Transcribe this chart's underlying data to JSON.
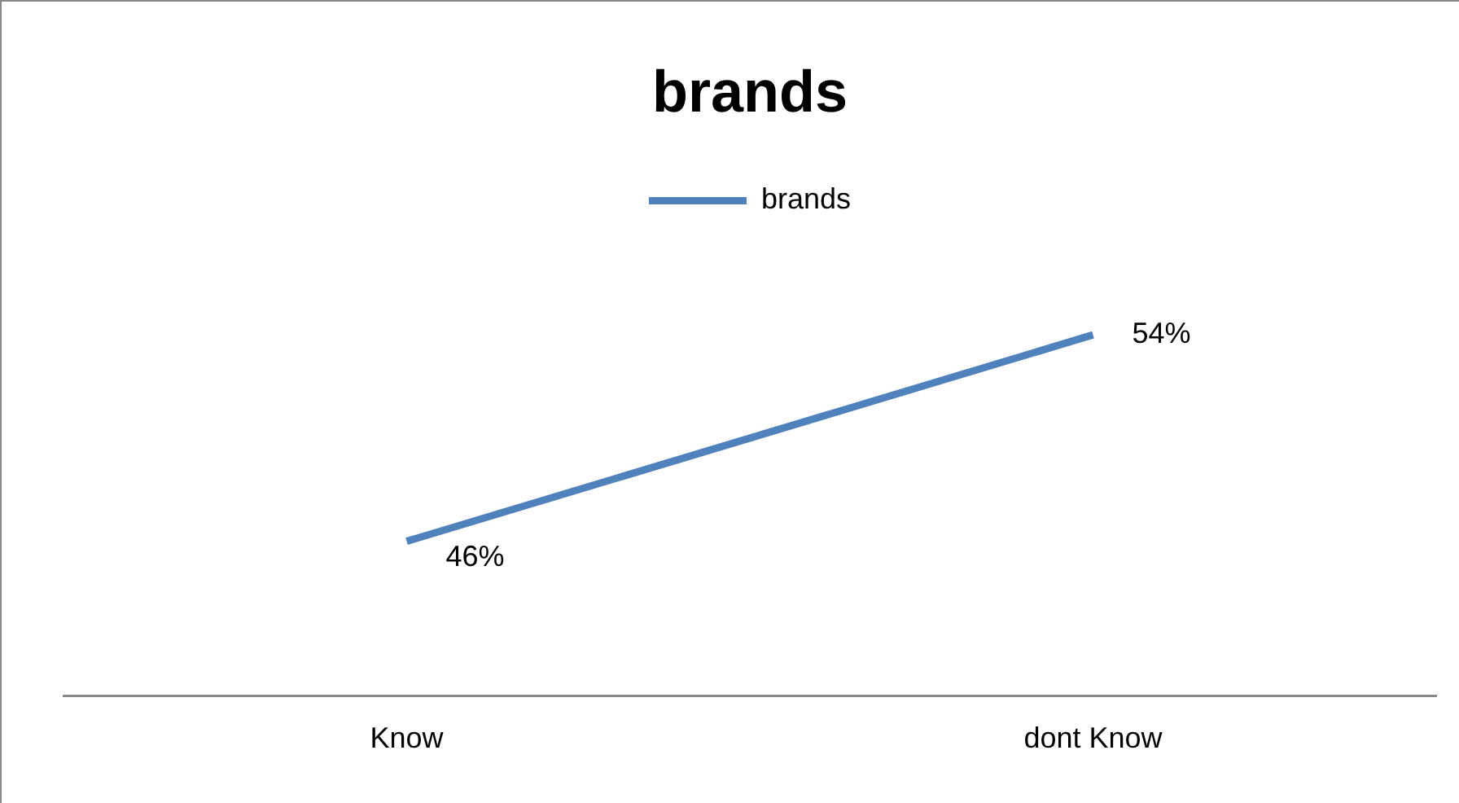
{
  "chart_data": {
    "type": "line",
    "title": "brands",
    "categories": [
      "Know",
      "dont Know"
    ],
    "series": [
      {
        "name": "brands",
        "color": "#4f81bd",
        "values": [
          46,
          54
        ],
        "value_labels": [
          "46%",
          "54%"
        ]
      }
    ],
    "tick_labels": "x",
    "grid": false,
    "legend": "top",
    "marker": "none"
  }
}
